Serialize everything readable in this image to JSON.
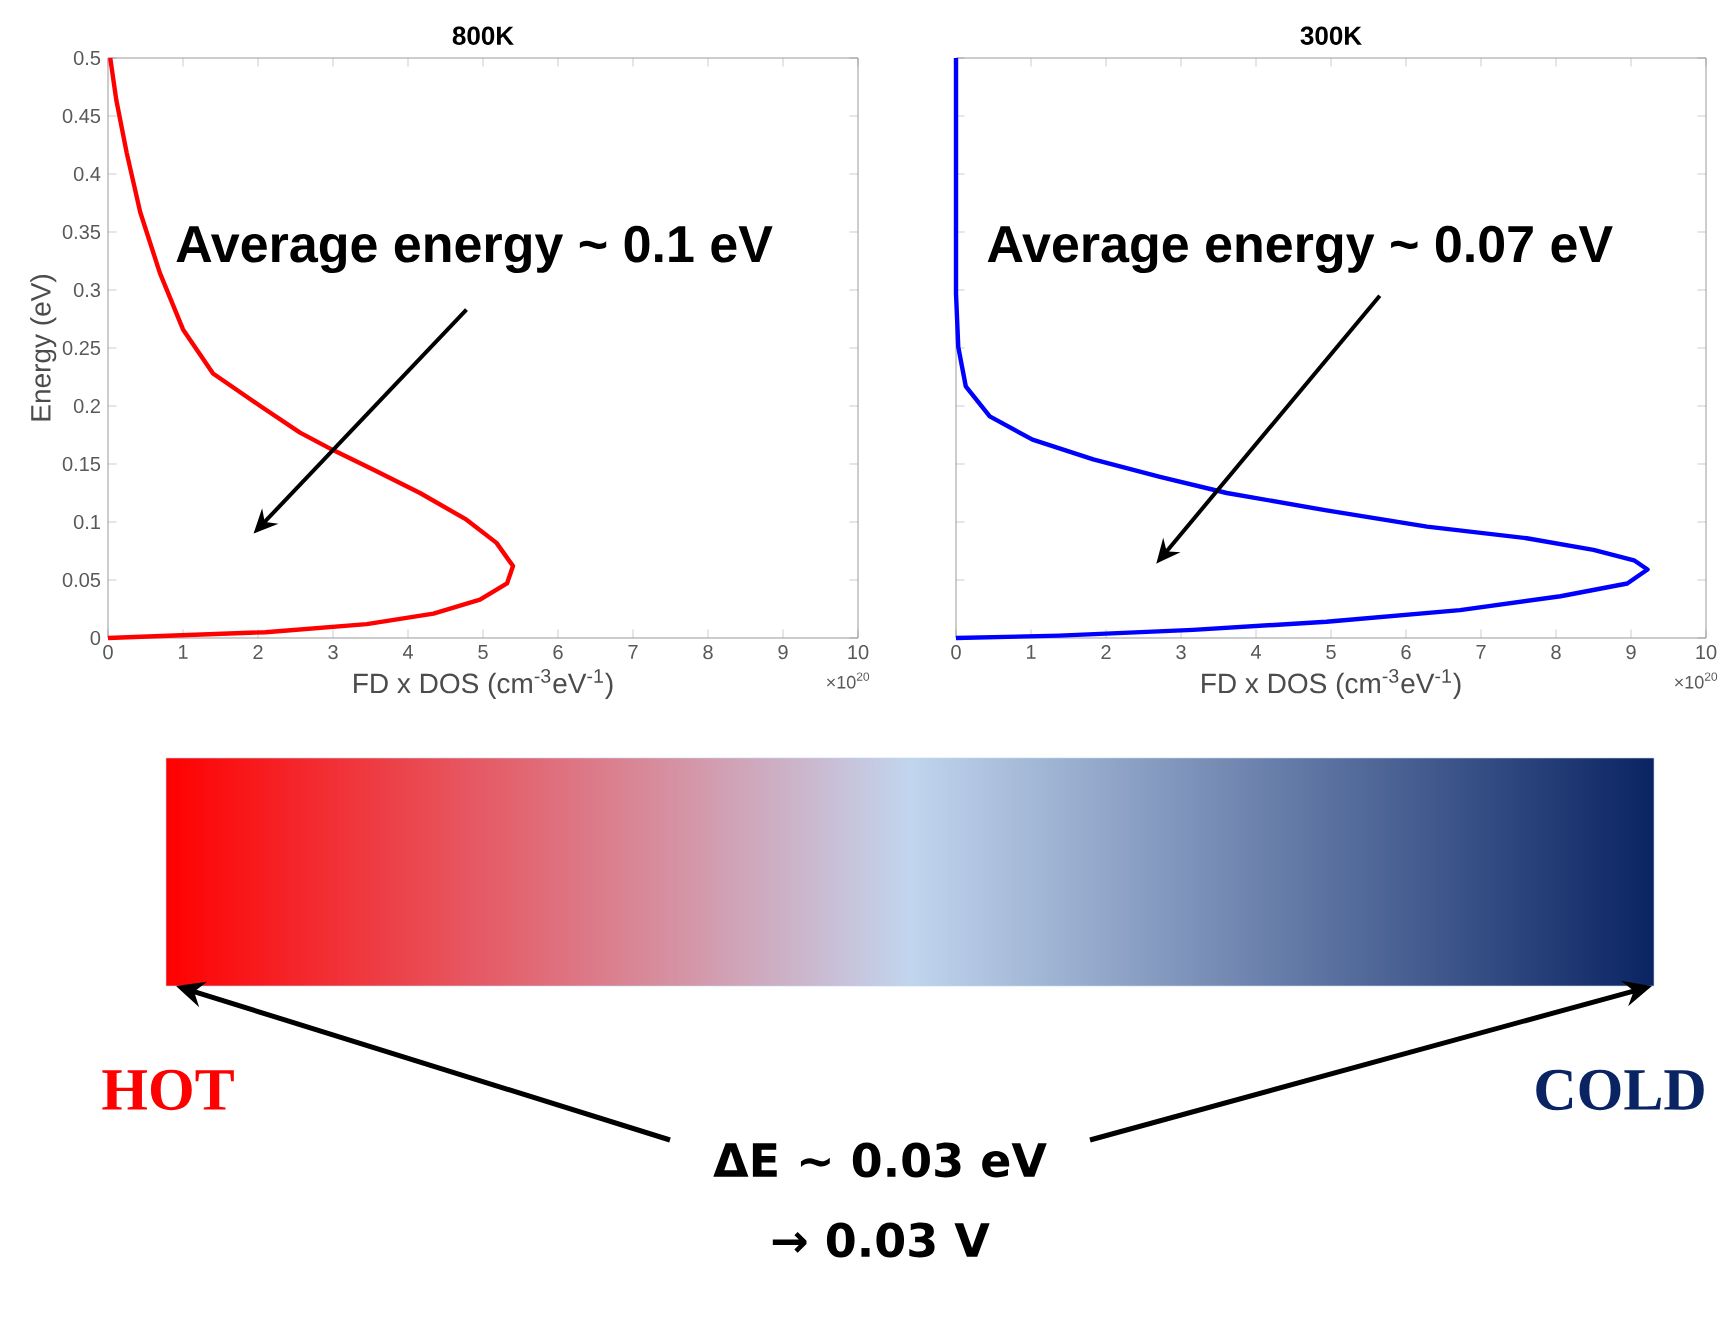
{
  "chart_data": [
    {
      "type": "line",
      "title": "800K",
      "xlabel": "FD x DOS (cm$^{-3}$eV$^{-1}$)",
      "ylabel": "Energy (eV)",
      "xlim": [
        0,
        10
      ],
      "ylim": [
        0,
        0.5
      ],
      "xticks": [
        0,
        1,
        2,
        3,
        4,
        5,
        6,
        7,
        8,
        9,
        10
      ],
      "yticks": [
        0,
        0.05,
        0.1,
        0.15,
        0.2,
        0.25,
        0.3,
        0.35,
        0.4,
        0.45,
        0.5
      ],
      "series": [
        {
          "color": "#ff0000",
          "x": [
            0.03,
            0.11,
            0.25,
            0.43,
            0.69,
            1.0,
            1.4,
            2.03,
            2.56,
            3.0,
            3.54,
            4.16,
            4.78,
            5.18,
            5.4,
            5.32,
            4.96,
            4.34,
            3.45,
            2.1,
            0.8,
            0
          ],
          "values": [
            0.5,
            0.464,
            0.418,
            0.367,
            0.315,
            0.266,
            0.228,
            0.2,
            0.177,
            0.162,
            0.145,
            0.125,
            0.102,
            0.082,
            0.062,
            0.047,
            0.033,
            0.021,
            0.012,
            0.005,
            0.002,
            0
          ]
        }
      ],
      "annotations": [
        "×10$^{20}$",
        "Average energy ~ 0.1 eV"
      ]
    },
    {
      "type": "line",
      "title": "300K",
      "xlabel": "FD x DOS (cm$^{-3}$eV$^{-1}$)",
      "xlim": [
        0,
        10
      ],
      "ylim": [
        0,
        0.5
      ],
      "xticks": [
        0,
        1,
        2,
        3,
        4,
        5,
        6,
        7,
        8,
        9,
        10
      ],
      "yticks": [
        0,
        0.05,
        0.1,
        0.15,
        0.2,
        0.25,
        0.3,
        0.35,
        0.4,
        0.45,
        0.5
      ],
      "tick_labels": "x",
      "series": [
        {
          "color": "#0000ff",
          "x": [
            0,
            0,
            0.03,
            0.13,
            0.45,
            1.02,
            1.83,
            2.72,
            3.61,
            4.94,
            6.28,
            7.61,
            8.5,
            9.04,
            9.22,
            8.95,
            8.06,
            6.72,
            4.94,
            3.16,
            1.38,
            0
          ],
          "values": [
            0.5,
            0.297,
            0.251,
            0.217,
            0.191,
            0.171,
            0.154,
            0.139,
            0.125,
            0.11,
            0.096,
            0.086,
            0.076,
            0.067,
            0.059,
            0.047,
            0.036,
            0.024,
            0.014,
            0.007,
            0.002,
            0
          ]
        }
      ],
      "annotations": [
        "×10$^{20}$",
        "Average energy ~ 0.07 eV"
      ]
    },
    {
      "type": "other",
      "colors": [
        "#ff0000",
        "#c2d5ee",
        "#0a2463"
      ],
      "annotations": [
        "HOT",
        "COLD",
        "ΔE ~ 0.03 eV",
        "→ 0.03 V"
      ]
    }
  ]
}
